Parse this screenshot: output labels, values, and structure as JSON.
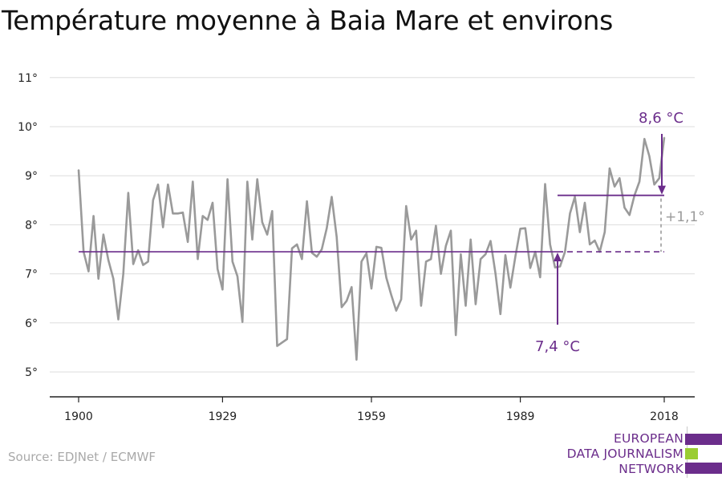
{
  "title": "Température moyenne à Baia Mare et environs",
  "source": "Source: EDJNet / ECMWF",
  "logo": {
    "lines": [
      "EUROPEAN",
      "DATA JOURNALISM",
      "NETWORK"
    ],
    "colors": {
      "purple": "#6b2d8b",
      "green": "#9acd32"
    }
  },
  "chart_data": {
    "type": "line",
    "title": "Température moyenne à Baia Mare et environs",
    "xlabel": "",
    "ylabel": "",
    "xlim": [
      1900,
      2018
    ],
    "ylim": [
      4.5,
      11
    ],
    "x_ticks": [
      1900,
      1929,
      1959,
      1989,
      2018
    ],
    "y_ticks": [
      5,
      6,
      7,
      8,
      9,
      10,
      11
    ],
    "y_tick_labels": [
      "5°",
      "6°",
      "7°",
      "8°",
      "9°",
      "10°",
      "11°"
    ],
    "grid": true,
    "colors": {
      "series": "#9a9a9a",
      "reference": "#6b2d8b",
      "difference": "#9a9a9a",
      "grid": "#dddddd"
    },
    "x": [
      1900,
      1901,
      1902,
      1903,
      1904,
      1905,
      1906,
      1907,
      1908,
      1909,
      1910,
      1911,
      1912,
      1913,
      1914,
      1915,
      1916,
      1917,
      1918,
      1919,
      1920,
      1921,
      1922,
      1923,
      1924,
      1925,
      1926,
      1927,
      1928,
      1929,
      1930,
      1931,
      1932,
      1933,
      1934,
      1935,
      1936,
      1937,
      1938,
      1939,
      1940,
      1941,
      1942,
      1943,
      1944,
      1945,
      1946,
      1947,
      1948,
      1949,
      1950,
      1951,
      1952,
      1953,
      1954,
      1955,
      1956,
      1957,
      1958,
      1959,
      1960,
      1961,
      1962,
      1963,
      1964,
      1965,
      1966,
      1967,
      1968,
      1969,
      1970,
      1971,
      1972,
      1973,
      1974,
      1975,
      1976,
      1977,
      1978,
      1979,
      1980,
      1981,
      1982,
      1983,
      1984,
      1985,
      1986,
      1987,
      1988,
      1989,
      1990,
      1991,
      1992,
      1993,
      1994,
      1995,
      1996,
      1997,
      1998,
      1999,
      2000,
      2001,
      2002,
      2003,
      2004,
      2005,
      2006,
      2007,
      2008,
      2009,
      2010,
      2011,
      2012,
      2013,
      2014,
      2015,
      2016,
      2017,
      2018
    ],
    "values": [
      9.12,
      7.45,
      7.05,
      8.18,
      6.9,
      7.8,
      7.28,
      6.9,
      6.07,
      7.0,
      8.65,
      7.2,
      7.48,
      7.18,
      7.25,
      8.5,
      8.82,
      7.95,
      8.82,
      8.23,
      8.23,
      8.25,
      7.65,
      8.88,
      7.3,
      8.18,
      8.1,
      8.45,
      7.1,
      6.68,
      8.93,
      7.25,
      6.95,
      6.02,
      8.88,
      7.7,
      8.93,
      8.05,
      7.8,
      8.28,
      5.53,
      5.6,
      5.67,
      7.52,
      7.6,
      7.3,
      8.48,
      7.43,
      7.35,
      7.5,
      7.93,
      8.57,
      7.75,
      6.32,
      6.45,
      6.73,
      5.25,
      7.25,
      7.42,
      6.7,
      7.55,
      7.53,
      6.92,
      6.57,
      6.25,
      6.48,
      8.38,
      7.7,
      7.88,
      6.35,
      7.25,
      7.3,
      7.98,
      7.0,
      7.57,
      7.88,
      5.75,
      7.4,
      6.35,
      7.7,
      6.38,
      7.3,
      7.4,
      7.67,
      7.0,
      6.18,
      7.38,
      6.72,
      7.35,
      7.92,
      7.93,
      7.12,
      7.45,
      6.93,
      8.83,
      7.6,
      7.13,
      7.15,
      7.45,
      8.23,
      8.57,
      7.85,
      8.45,
      7.6,
      7.68,
      7.45,
      7.85,
      9.15,
      8.78,
      8.95,
      8.35,
      8.2,
      8.6,
      8.88,
      9.75,
      9.4,
      8.82,
      8.95,
      9.78
    ],
    "annotations": {
      "reference_value": 7.45,
      "reference_label": "7,4 °C",
      "reference_arrow_x": 1996.5,
      "recent_value": 8.6,
      "recent_label": "8,6 °C",
      "recent_start_x": 1996.5,
      "recent_arrow_x": 2018,
      "difference_label": "+1,1°"
    }
  }
}
